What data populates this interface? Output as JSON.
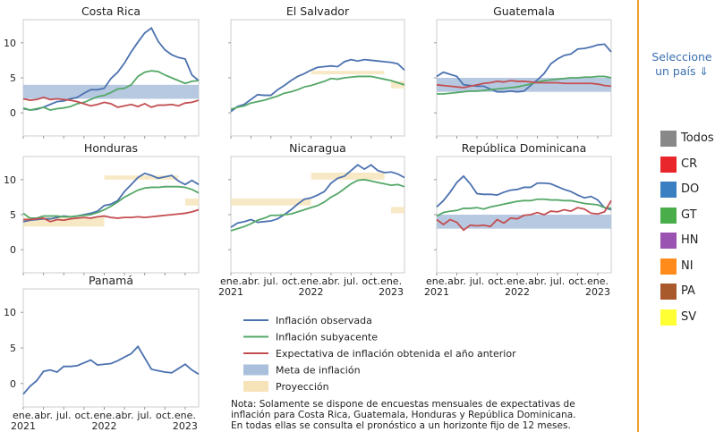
{
  "chart_data": {
    "type": "line",
    "x": [
      "2021-01",
      "2021-02",
      "2021-03",
      "2021-04",
      "2021-05",
      "2021-06",
      "2021-07",
      "2021-08",
      "2021-09",
      "2021-10",
      "2021-11",
      "2021-12",
      "2022-01",
      "2022-02",
      "2022-03",
      "2022-04",
      "2022-05",
      "2022-06",
      "2022-07",
      "2022-08",
      "2022-09",
      "2022-10",
      "2022-11",
      "2022-12",
      "2023-01",
      "2023-02",
      "2023-03"
    ],
    "xlim": [
      "2021-01",
      "2023-03"
    ],
    "xticks": [
      {
        "value": "2021-01",
        "label": "ene. 2021"
      },
      {
        "value": "2021-04",
        "label": "abr."
      },
      {
        "value": "2021-07",
        "label": "jul."
      },
      {
        "value": "2021-10",
        "label": "oct."
      },
      {
        "value": "2022-01",
        "label": "ene. 2022"
      },
      {
        "value": "2022-04",
        "label": "abr."
      },
      {
        "value": "2022-07",
        "label": "jul."
      },
      {
        "value": "2022-10",
        "label": "oct."
      },
      {
        "value": "2023-01",
        "label": "ene. 2023"
      }
    ],
    "ylim": [
      -3.3,
      13.3
    ],
    "yticks": [
      0,
      5,
      10
    ],
    "legend": [
      {
        "name": "Inflación observada",
        "color": "#4c72b0"
      },
      {
        "name": "Inflación subyacente",
        "color": "#55a868"
      },
      {
        "name": "Expectativa de inflación obtenida el año anterior",
        "color": "#c44e52"
      },
      {
        "name": "Meta de inflación",
        "color": "#a9bfdc"
      },
      {
        "name": "Proyección",
        "color": "#f6e3b8"
      }
    ],
    "panels": [
      {
        "title": "Costa Rica",
        "target": [
          2,
          4
        ],
        "observed": [
          0.6,
          0.4,
          0.5,
          0.8,
          1.2,
          1.6,
          1.7,
          2.0,
          2.2,
          2.8,
          3.3,
          3.3,
          3.5,
          4.9,
          5.8,
          7.1,
          8.7,
          10.1,
          11.4,
          12.1,
          10.2,
          9.0,
          8.3,
          7.9,
          7.7,
          5.4,
          4.6
        ],
        "core": [
          0.7,
          0.4,
          0.6,
          0.8,
          0.4,
          0.6,
          0.7,
          0.9,
          1.3,
          1.5,
          1.9,
          2.3,
          2.5,
          2.9,
          3.4,
          3.5,
          4.0,
          5.2,
          5.8,
          6.0,
          5.9,
          5.4,
          5.0,
          4.6,
          4.2,
          4.5,
          4.6
        ],
        "expected": [
          2.0,
          1.8,
          1.9,
          2.2,
          1.9,
          2.0,
          1.9,
          1.8,
          1.6,
          1.3,
          1.0,
          1.2,
          1.5,
          1.3,
          0.8,
          1.0,
          1.2,
          0.9,
          1.3,
          0.8,
          1.1,
          1.1,
          1.2,
          1.0,
          1.4,
          1.5,
          1.8
        ]
      },
      {
        "title": "El Salvador",
        "projection": [
          {
            "start": "2022-01",
            "end": "2022-12",
            "low": 5.5,
            "high": 6
          },
          {
            "start": "2023-01",
            "end": "2023-03",
            "low": 3.5,
            "high": 4.5
          }
        ],
        "observed": [
          0.2,
          0.9,
          1.2,
          1.9,
          2.6,
          2.5,
          2.5,
          3.3,
          3.9,
          4.6,
          5.2,
          5.6,
          6.1,
          6.5,
          6.6,
          6.7,
          6.6,
          7.3,
          7.6,
          7.4,
          7.6,
          7.5,
          7.4,
          7.3,
          7.2,
          7.0,
          6.1
        ],
        "core": [
          0.5,
          0.8,
          1.0,
          1.4,
          1.6,
          1.8,
          2.1,
          2.4,
          2.8,
          3.0,
          3.3,
          3.7,
          3.9,
          4.2,
          4.5,
          4.9,
          4.8,
          5.0,
          5.1,
          5.2,
          5.2,
          5.2,
          5.0,
          4.8,
          4.6,
          4.3,
          4.0
        ]
      },
      {
        "title": "Guatemala",
        "target": [
          3,
          5
        ],
        "observed": [
          5.2,
          5.8,
          5.5,
          5.2,
          4.0,
          3.9,
          3.8,
          3.8,
          3.4,
          3.0,
          3.0,
          3.1,
          3.0,
          3.1,
          3.9,
          4.7,
          5.6,
          7.0,
          7.7,
          8.2,
          8.4,
          9.1,
          9.2,
          9.4,
          9.7,
          9.8,
          8.7
        ],
        "core": [
          2.7,
          2.7,
          2.8,
          2.9,
          3.0,
          3.1,
          3.1,
          3.2,
          3.3,
          3.4,
          3.5,
          3.6,
          3.7,
          3.9,
          4.1,
          4.4,
          4.6,
          4.7,
          4.8,
          4.9,
          5.0,
          5.0,
          5.1,
          5.1,
          5.2,
          5.2,
          5.0
        ],
        "expected": [
          4.0,
          3.9,
          3.8,
          3.7,
          3.6,
          3.8,
          4.0,
          4.2,
          4.3,
          4.5,
          4.4,
          4.6,
          4.5,
          4.5,
          4.4,
          4.3,
          4.3,
          4.3,
          4.3,
          4.2,
          4.2,
          4.2,
          4.2,
          4.2,
          4.1,
          3.9,
          3.8
        ]
      },
      {
        "title": "Honduras",
        "projection": [
          {
            "start": "2021-01",
            "end": "2022-01",
            "low": 3.3,
            "high": 4.6
          },
          {
            "start": "2022-01",
            "end": "2022-12",
            "low": 10,
            "high": 10.6
          },
          {
            "start": "2023-01",
            "end": "2023-03",
            "low": 6.3,
            "high": 7.3
          }
        ],
        "observed": [
          4.0,
          4.2,
          4.3,
          4.4,
          4.4,
          4.6,
          4.8,
          4.7,
          4.8,
          5.0,
          5.2,
          5.5,
          6.3,
          6.5,
          7.0,
          8.3,
          9.3,
          10.3,
          10.9,
          10.6,
          10.2,
          10.4,
          10.6,
          9.8,
          9.3,
          9.9,
          9.3
        ],
        "core": [
          5.2,
          4.5,
          4.5,
          4.8,
          4.8,
          4.8,
          4.7,
          4.7,
          4.8,
          4.9,
          5.0,
          5.3,
          5.7,
          6.2,
          6.8,
          7.5,
          8.0,
          8.5,
          8.8,
          8.9,
          8.9,
          9.0,
          9.0,
          9.0,
          8.9,
          8.6,
          8.1
        ],
        "expected": [
          4.3,
          4.3,
          4.4,
          4.5,
          4.0,
          4.3,
          4.2,
          4.4,
          4.5,
          4.6,
          4.5,
          4.7,
          4.8,
          4.6,
          4.5,
          4.6,
          4.6,
          4.7,
          4.6,
          4.7,
          4.8,
          4.9,
          5.0,
          5.1,
          5.2,
          5.4,
          5.7
        ]
      },
      {
        "title": "Nicaragua",
        "projection": [
          {
            "start": "2021-01",
            "end": "2022-01",
            "low": 6.3,
            "high": 7.3
          },
          {
            "start": "2022-01",
            "end": "2022-12",
            "low": 10,
            "high": 11
          },
          {
            "start": "2023-01",
            "end": "2023-03",
            "low": 5.2,
            "high": 6.1
          }
        ],
        "observed": [
          3.2,
          3.8,
          4.0,
          4.3,
          3.9,
          4.0,
          4.1,
          4.4,
          5.0,
          5.7,
          6.5,
          7.2,
          7.4,
          7.8,
          8.3,
          9.5,
          10.2,
          10.5,
          11.3,
          12.1,
          11.5,
          12.1,
          11.3,
          11.0,
          11.1,
          10.8,
          10.3
        ],
        "core": [
          2.7,
          3.0,
          3.3,
          3.7,
          4.2,
          4.5,
          4.9,
          4.9,
          5.0,
          5.1,
          5.4,
          5.7,
          6.0,
          6.3,
          6.8,
          7.5,
          8.0,
          8.7,
          9.4,
          9.9,
          10.0,
          9.8,
          9.6,
          9.4,
          9.2,
          9.3,
          9.0
        ]
      },
      {
        "title": "República Dominicana",
        "target": [
          3,
          5
        ],
        "observed": [
          6.1,
          7.0,
          8.2,
          9.6,
          10.5,
          9.4,
          8.0,
          7.9,
          7.9,
          7.8,
          8.2,
          8.5,
          8.6,
          8.9,
          8.9,
          9.5,
          9.5,
          9.4,
          9.0,
          8.6,
          8.3,
          7.8,
          7.4,
          7.6,
          7.1,
          6.0,
          5.7
        ],
        "core": [
          4.8,
          5.3,
          5.5,
          5.6,
          5.9,
          5.9,
          6.0,
          5.8,
          6.1,
          6.3,
          6.5,
          6.7,
          6.9,
          7.0,
          7.0,
          7.2,
          7.2,
          7.1,
          7.1,
          7.0,
          7.0,
          6.8,
          6.6,
          6.5,
          6.4,
          6.0,
          5.9
        ],
        "expected": [
          4.3,
          3.6,
          4.3,
          3.9,
          2.8,
          3.5,
          3.4,
          3.5,
          3.3,
          4.3,
          3.8,
          4.5,
          4.4,
          4.9,
          5.0,
          5.3,
          5.0,
          5.5,
          5.4,
          5.7,
          5.5,
          6.0,
          5.8,
          5.2,
          5.1,
          5.4,
          7.0
        ]
      },
      {
        "title": "Panamá",
        "observed": [
          -1.5,
          -0.4,
          0.4,
          1.7,
          1.9,
          1.6,
          2.4,
          2.4,
          2.5,
          2.9,
          3.3,
          2.6,
          2.7,
          2.8,
          3.2,
          3.7,
          4.2,
          5.2,
          3.6,
          2.0,
          1.8,
          1.6,
          1.5,
          2.1,
          2.7,
          1.9,
          1.3
        ]
      }
    ],
    "note": [
      "Nota: Solamente se dispone de encuestas mensuales de expectativas de",
      "inflación para Costa Rica, Guatemala, Honduras y República Dominicana.",
      "En todas ellas se consulta el pronóstico a un horizonte fijo de 12 meses."
    ]
  },
  "selector": {
    "prompt": "Seleccione un país ⇓",
    "options": [
      {
        "label": "Todos",
        "color": "#888888"
      },
      {
        "label": "CR",
        "color": "#e8262b"
      },
      {
        "label": "DO",
        "color": "#3a7fc1"
      },
      {
        "label": "GT",
        "color": "#49ad4a"
      },
      {
        "label": "HN",
        "color": "#9a53b0"
      },
      {
        "label": "NI",
        "color": "#ff8c1a"
      },
      {
        "label": "PA",
        "color": "#a85a2c"
      },
      {
        "label": "SV",
        "color": "#ffff33"
      }
    ]
  }
}
